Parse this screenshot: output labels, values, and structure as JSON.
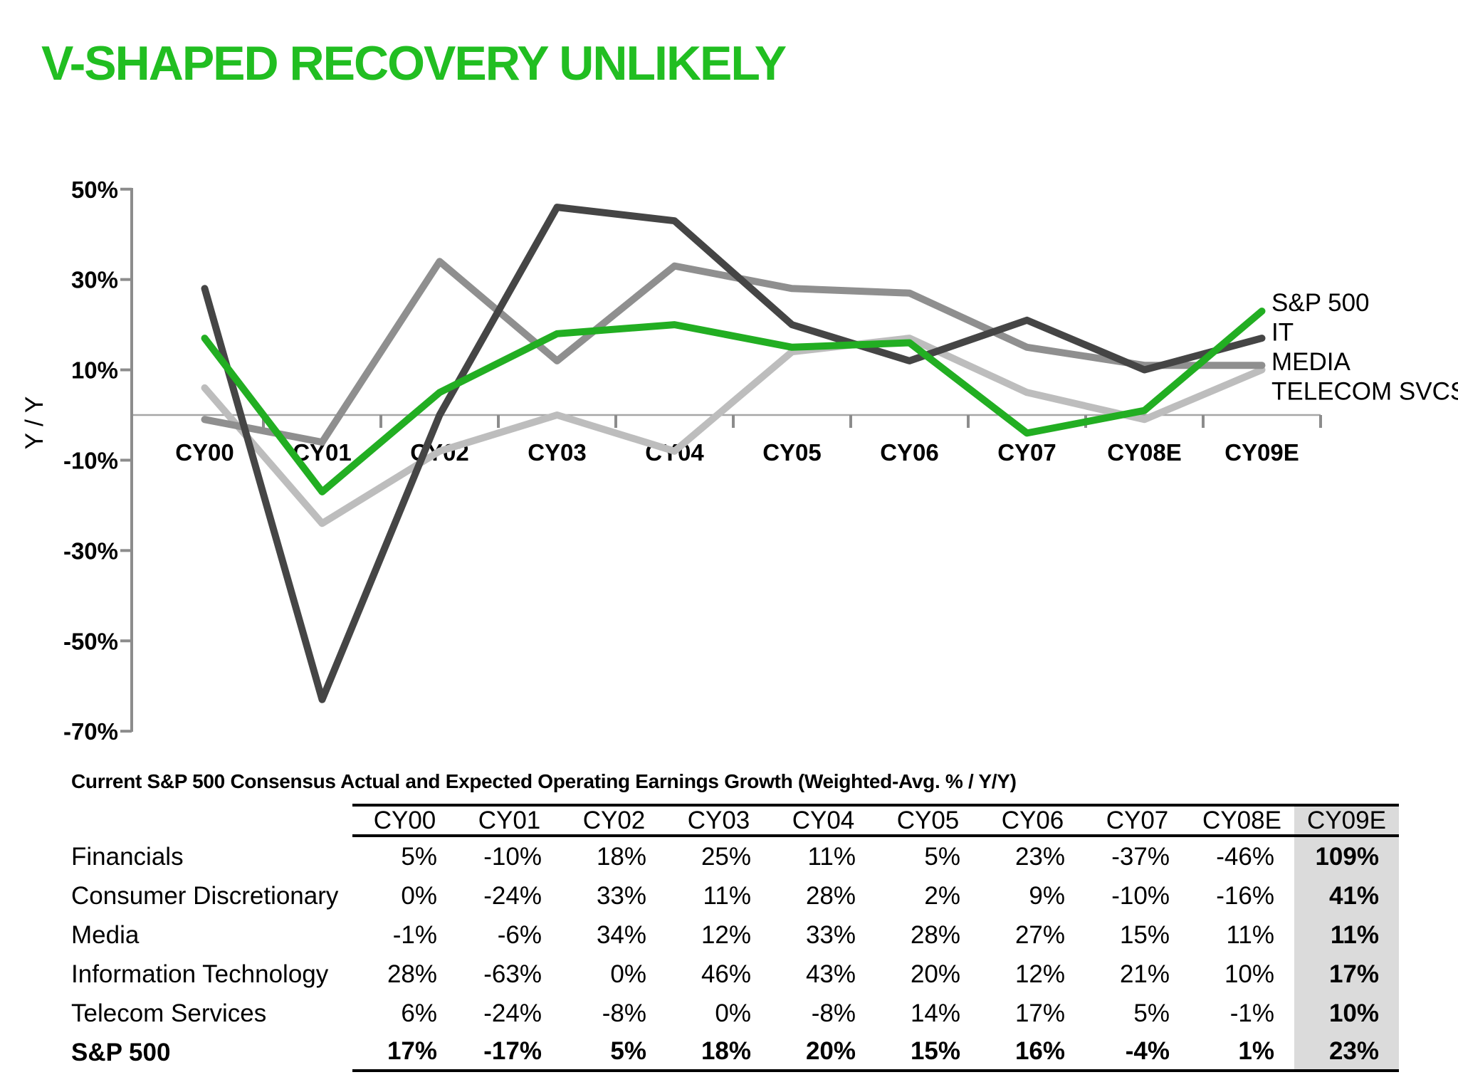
{
  "title": "V-SHAPED RECOVERY UNLIKELY",
  "colors": {
    "title_green": "#21BE21",
    "axis_gray": "#8C8C8C",
    "zero_line_gray": "#A6A6A6",
    "text_black": "#000000",
    "table_highlight_bg": "#DBDBDB"
  },
  "chart_data": {
    "type": "line",
    "title": "",
    "ylabel": "Y / Y",
    "categories": [
      "CY00",
      "CY01",
      "CY02",
      "CY03",
      "CY04",
      "CY05",
      "CY06",
      "CY07",
      "CY08E",
      "CY09E"
    ],
    "yticks": [
      "50%",
      "30%",
      "10%",
      "-10%",
      "-30%",
      "-50%",
      "-70%"
    ],
    "ylim": [
      -70,
      50
    ],
    "grid": "zero-line-only",
    "legend_position": "right-of-plot",
    "series": [
      {
        "name": "S&P 500",
        "color": "#22AE22",
        "values": [
          17,
          -17,
          5,
          18,
          20,
          15,
          16,
          -4,
          1,
          23
        ]
      },
      {
        "name": "IT",
        "color": "#454545",
        "values": [
          28,
          -63,
          0,
          46,
          43,
          20,
          12,
          21,
          10,
          17
        ]
      },
      {
        "name": "MEDIA",
        "color": "#8F8F8F",
        "values": [
          -1,
          -6,
          34,
          12,
          33,
          28,
          27,
          15,
          11,
          11
        ]
      },
      {
        "name": "TELECOM SVCS",
        "color": "#BDBDBD",
        "values": [
          6,
          -24,
          -8,
          0,
          -8,
          14,
          17,
          5,
          -1,
          10
        ]
      }
    ]
  },
  "table": {
    "title": "Current S&P 500 Consensus Actual and Expected Operating Earnings Growth (Weighted-Avg. % / Y/Y)",
    "columns": [
      "CY00",
      "CY01",
      "CY02",
      "CY03",
      "CY04",
      "CY05",
      "CY06",
      "CY07",
      "CY08E",
      "CY09E"
    ],
    "highlight_column": "CY09E",
    "rows": [
      {
        "label": "Financials",
        "bold": false,
        "values": [
          "5%",
          "-10%",
          "18%",
          "25%",
          "11%",
          "5%",
          "23%",
          "-37%",
          "-46%",
          "109%"
        ]
      },
      {
        "label": "Consumer Discretionary",
        "bold": false,
        "values": [
          "0%",
          "-24%",
          "33%",
          "11%",
          "28%",
          "2%",
          "9%",
          "-10%",
          "-16%",
          "41%"
        ]
      },
      {
        "label": "Media",
        "bold": false,
        "values": [
          "-1%",
          "-6%",
          "34%",
          "12%",
          "33%",
          "28%",
          "27%",
          "15%",
          "11%",
          "11%"
        ]
      },
      {
        "label": "Information Technology",
        "bold": false,
        "values": [
          "28%",
          "-63%",
          "0%",
          "46%",
          "43%",
          "20%",
          "12%",
          "21%",
          "10%",
          "17%"
        ]
      },
      {
        "label": "Telecom Services",
        "bold": false,
        "values": [
          "6%",
          "-24%",
          "-8%",
          "0%",
          "-8%",
          "14%",
          "17%",
          "5%",
          "-1%",
          "10%"
        ]
      },
      {
        "label": "S&P 500",
        "bold": true,
        "values": [
          "17%",
          "-17%",
          "5%",
          "18%",
          "20%",
          "15%",
          "16%",
          "-4%",
          "1%",
          "23%"
        ]
      }
    ]
  }
}
